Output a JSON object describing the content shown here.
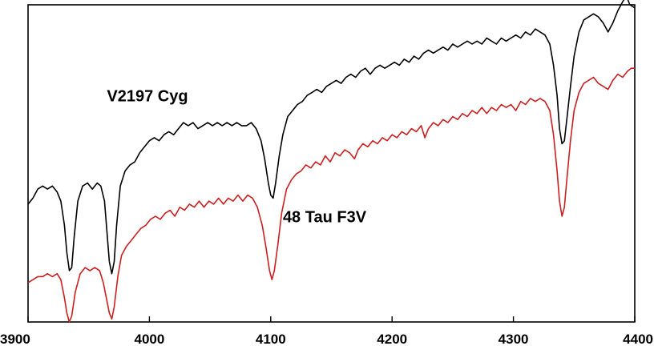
{
  "chart_data": {
    "type": "line",
    "xlabel": "",
    "ylabel": "",
    "xlim": [
      3900,
      4400
    ],
    "ylim": [
      0.2,
      1.25
    ],
    "grid": false,
    "x_ticks": [
      3900,
      4000,
      4100,
      4200,
      4300,
      4400
    ],
    "x_tick_labels": [
      "3900",
      "4000",
      "4100",
      "4200",
      "4300",
      "4400"
    ],
    "annotations": [
      {
        "text": "V2197 Cyg",
        "x": 3965,
        "y": 0.93
      },
      {
        "text": "48 Tau F3V",
        "x": 4110,
        "y": 0.53
      }
    ],
    "series": [
      {
        "label": "V2197 Cyg",
        "color": "#000000",
        "points": [
          [
            3900,
            0.59
          ],
          [
            3904,
            0.61
          ],
          [
            3908,
            0.64
          ],
          [
            3912,
            0.65
          ],
          [
            3916,
            0.64
          ],
          [
            3920,
            0.65
          ],
          [
            3924,
            0.63
          ],
          [
            3927,
            0.6
          ],
          [
            3930,
            0.52
          ],
          [
            3932,
            0.43
          ],
          [
            3934,
            0.37
          ],
          [
            3936,
            0.38
          ],
          [
            3938,
            0.48
          ],
          [
            3941,
            0.6
          ],
          [
            3945,
            0.65
          ],
          [
            3949,
            0.66
          ],
          [
            3953,
            0.64
          ],
          [
            3957,
            0.66
          ],
          [
            3960,
            0.65
          ],
          [
            3963,
            0.6
          ],
          [
            3965,
            0.5
          ],
          [
            3967,
            0.4
          ],
          [
            3969,
            0.36
          ],
          [
            3971,
            0.4
          ],
          [
            3973,
            0.52
          ],
          [
            3976,
            0.65
          ],
          [
            3980,
            0.7
          ],
          [
            3984,
            0.72
          ],
          [
            3988,
            0.73
          ],
          [
            3992,
            0.76
          ],
          [
            3996,
            0.78
          ],
          [
            4000,
            0.8
          ],
          [
            4004,
            0.81
          ],
          [
            4008,
            0.8
          ],
          [
            4012,
            0.82
          ],
          [
            4016,
            0.83
          ],
          [
            4020,
            0.82
          ],
          [
            4024,
            0.84
          ],
          [
            4028,
            0.86
          ],
          [
            4032,
            0.85
          ],
          [
            4036,
            0.86
          ],
          [
            4040,
            0.84
          ],
          [
            4044,
            0.85
          ],
          [
            4048,
            0.86
          ],
          [
            4052,
            0.85
          ],
          [
            4056,
            0.86
          ],
          [
            4060,
            0.85
          ],
          [
            4064,
            0.86
          ],
          [
            4068,
            0.85
          ],
          [
            4072,
            0.86
          ],
          [
            4076,
            0.85
          ],
          [
            4080,
            0.85
          ],
          [
            4084,
            0.86
          ],
          [
            4088,
            0.84
          ],
          [
            4092,
            0.8
          ],
          [
            4095,
            0.74
          ],
          [
            4098,
            0.66
          ],
          [
            4100,
            0.62
          ],
          [
            4102,
            0.61
          ],
          [
            4104,
            0.66
          ],
          [
            4107,
            0.75
          ],
          [
            4110,
            0.82
          ],
          [
            4114,
            0.88
          ],
          [
            4118,
            0.9
          ],
          [
            4122,
            0.92
          ],
          [
            4126,
            0.93
          ],
          [
            4130,
            0.95
          ],
          [
            4134,
            0.96
          ],
          [
            4138,
            0.97
          ],
          [
            4142,
            0.96
          ],
          [
            4146,
            0.98
          ],
          [
            4150,
            0.99
          ],
          [
            4154,
            1.0
          ],
          [
            4158,
            0.99
          ],
          [
            4162,
            1.01
          ],
          [
            4166,
            1.02
          ],
          [
            4170,
            1.01
          ],
          [
            4174,
            1.03
          ],
          [
            4178,
            1.04
          ],
          [
            4182,
            1.02
          ],
          [
            4186,
            1.04
          ],
          [
            4190,
            1.05
          ],
          [
            4194,
            1.04
          ],
          [
            4198,
            1.05
          ],
          [
            4202,
            1.06
          ],
          [
            4206,
            1.05
          ],
          [
            4210,
            1.07
          ],
          [
            4214,
            1.06
          ],
          [
            4218,
            1.08
          ],
          [
            4222,
            1.07
          ],
          [
            4226,
            1.09
          ],
          [
            4230,
            1.1
          ],
          [
            4234,
            1.09
          ],
          [
            4238,
            1.1
          ],
          [
            4242,
            1.11
          ],
          [
            4246,
            1.1
          ],
          [
            4250,
            1.12
          ],
          [
            4254,
            1.11
          ],
          [
            4258,
            1.12
          ],
          [
            4262,
            1.13
          ],
          [
            4266,
            1.12
          ],
          [
            4270,
            1.13
          ],
          [
            4274,
            1.12
          ],
          [
            4278,
            1.14
          ],
          [
            4282,
            1.13
          ],
          [
            4286,
            1.12
          ],
          [
            4290,
            1.14
          ],
          [
            4294,
            1.13
          ],
          [
            4298,
            1.14
          ],
          [
            4302,
            1.15
          ],
          [
            4306,
            1.14
          ],
          [
            4310,
            1.16
          ],
          [
            4314,
            1.15
          ],
          [
            4318,
            1.17
          ],
          [
            4322,
            1.16
          ],
          [
            4326,
            1.15
          ],
          [
            4330,
            1.12
          ],
          [
            4333,
            1.05
          ],
          [
            4336,
            0.95
          ],
          [
            4338,
            0.84
          ],
          [
            4340,
            0.79
          ],
          [
            4342,
            0.8
          ],
          [
            4344,
            0.87
          ],
          [
            4347,
            0.98
          ],
          [
            4350,
            1.08
          ],
          [
            4354,
            1.16
          ],
          [
            4358,
            1.2
          ],
          [
            4362,
            1.21
          ],
          [
            4366,
            1.22
          ],
          [
            4370,
            1.21
          ],
          [
            4374,
            1.19
          ],
          [
            4378,
            1.16
          ],
          [
            4382,
            1.19
          ],
          [
            4386,
            1.23
          ],
          [
            4390,
            1.26
          ],
          [
            4393,
            1.28
          ],
          [
            4396,
            1.25
          ],
          [
            4400,
            1.24
          ]
        ]
      },
      {
        "label": "48 Tau F3V",
        "color": "#cc1f1f",
        "points": [
          [
            3900,
            0.33
          ],
          [
            3904,
            0.34
          ],
          [
            3908,
            0.35
          ],
          [
            3912,
            0.35
          ],
          [
            3916,
            0.36
          ],
          [
            3920,
            0.35
          ],
          [
            3924,
            0.36
          ],
          [
            3927,
            0.34
          ],
          [
            3930,
            0.28
          ],
          [
            3932,
            0.23
          ],
          [
            3934,
            0.2
          ],
          [
            3936,
            0.22
          ],
          [
            3939,
            0.3
          ],
          [
            3943,
            0.36
          ],
          [
            3947,
            0.38
          ],
          [
            3951,
            0.37
          ],
          [
            3955,
            0.38
          ],
          [
            3959,
            0.37
          ],
          [
            3962,
            0.33
          ],
          [
            3965,
            0.27
          ],
          [
            3967,
            0.23
          ],
          [
            3969,
            0.21
          ],
          [
            3971,
            0.25
          ],
          [
            3974,
            0.35
          ],
          [
            3977,
            0.42
          ],
          [
            3981,
            0.45
          ],
          [
            3985,
            0.47
          ],
          [
            3989,
            0.49
          ],
          [
            3993,
            0.51
          ],
          [
            3997,
            0.52
          ],
          [
            4001,
            0.54
          ],
          [
            4005,
            0.55
          ],
          [
            4009,
            0.54
          ],
          [
            4013,
            0.56
          ],
          [
            4017,
            0.57
          ],
          [
            4021,
            0.55
          ],
          [
            4025,
            0.58
          ],
          [
            4029,
            0.57
          ],
          [
            4033,
            0.59
          ],
          [
            4037,
            0.58
          ],
          [
            4041,
            0.6
          ],
          [
            4045,
            0.58
          ],
          [
            4049,
            0.6
          ],
          [
            4053,
            0.59
          ],
          [
            4057,
            0.61
          ],
          [
            4061,
            0.59
          ],
          [
            4065,
            0.61
          ],
          [
            4069,
            0.6
          ],
          [
            4073,
            0.62
          ],
          [
            4077,
            0.6
          ],
          [
            4081,
            0.62
          ],
          [
            4085,
            0.61
          ],
          [
            4089,
            0.58
          ],
          [
            4093,
            0.52
          ],
          [
            4096,
            0.45
          ],
          [
            4099,
            0.37
          ],
          [
            4101,
            0.34
          ],
          [
            4103,
            0.37
          ],
          [
            4106,
            0.46
          ],
          [
            4109,
            0.56
          ],
          [
            4113,
            0.64
          ],
          [
            4117,
            0.67
          ],
          [
            4121,
            0.69
          ],
          [
            4125,
            0.7
          ],
          [
            4129,
            0.72
          ],
          [
            4133,
            0.71
          ],
          [
            4137,
            0.73
          ],
          [
            4141,
            0.72
          ],
          [
            4145,
            0.75
          ],
          [
            4149,
            0.73
          ],
          [
            4153,
            0.76
          ],
          [
            4157,
            0.75
          ],
          [
            4161,
            0.77
          ],
          [
            4165,
            0.76
          ],
          [
            4169,
            0.74
          ],
          [
            4172,
            0.77
          ],
          [
            4176,
            0.79
          ],
          [
            4180,
            0.78
          ],
          [
            4184,
            0.8
          ],
          [
            4188,
            0.79
          ],
          [
            4192,
            0.81
          ],
          [
            4196,
            0.8
          ],
          [
            4200,
            0.82
          ],
          [
            4204,
            0.81
          ],
          [
            4208,
            0.83
          ],
          [
            4212,
            0.82
          ],
          [
            4216,
            0.84
          ],
          [
            4220,
            0.83
          ],
          [
            4224,
            0.85
          ],
          [
            4227,
            0.81
          ],
          [
            4230,
            0.84
          ],
          [
            4234,
            0.86
          ],
          [
            4238,
            0.85
          ],
          [
            4242,
            0.87
          ],
          [
            4246,
            0.86
          ],
          [
            4250,
            0.88
          ],
          [
            4254,
            0.87
          ],
          [
            4258,
            0.89
          ],
          [
            4262,
            0.88
          ],
          [
            4266,
            0.9
          ],
          [
            4270,
            0.89
          ],
          [
            4274,
            0.91
          ],
          [
            4278,
            0.89
          ],
          [
            4282,
            0.91
          ],
          [
            4286,
            0.9
          ],
          [
            4290,
            0.92
          ],
          [
            4294,
            0.91
          ],
          [
            4298,
            0.92
          ],
          [
            4302,
            0.9
          ],
          [
            4306,
            0.93
          ],
          [
            4310,
            0.92
          ],
          [
            4314,
            0.94
          ],
          [
            4318,
            0.93
          ],
          [
            4322,
            0.94
          ],
          [
            4326,
            0.93
          ],
          [
            4330,
            0.9
          ],
          [
            4333,
            0.82
          ],
          [
            4336,
            0.7
          ],
          [
            4338,
            0.6
          ],
          [
            4340,
            0.55
          ],
          [
            4342,
            0.58
          ],
          [
            4344,
            0.67
          ],
          [
            4347,
            0.8
          ],
          [
            4350,
            0.9
          ],
          [
            4354,
            0.96
          ],
          [
            4358,
            0.99
          ],
          [
            4362,
            1.0
          ],
          [
            4366,
            1.01
          ],
          [
            4370,
            0.99
          ],
          [
            4374,
            0.98
          ],
          [
            4378,
            0.97
          ],
          [
            4382,
            1.0
          ],
          [
            4386,
            1.02
          ],
          [
            4390,
            1.01
          ],
          [
            4394,
            1.03
          ],
          [
            4397,
            1.04
          ],
          [
            4400,
            1.04
          ]
        ]
      }
    ]
  }
}
